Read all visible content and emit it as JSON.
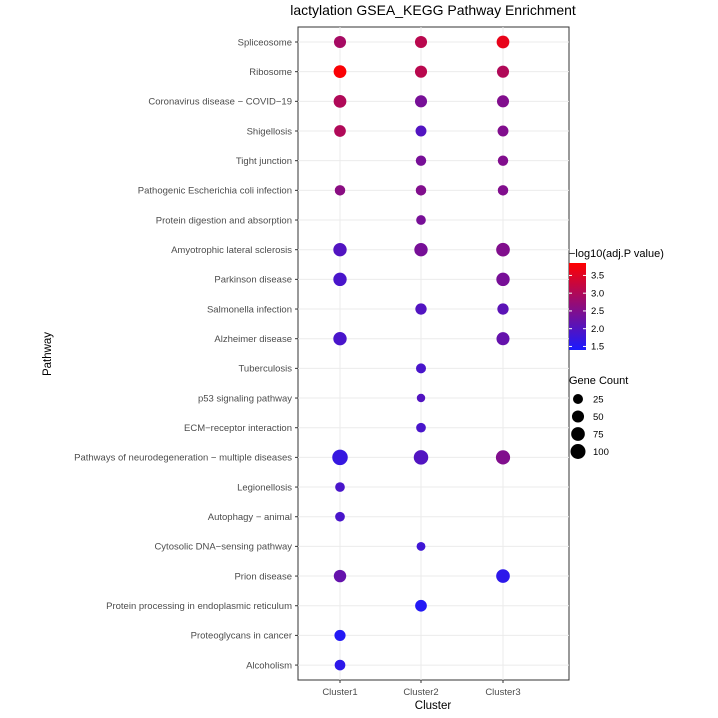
{
  "chart_data": {
    "type": "scatter",
    "title": "lactylation GSEA_KEGG Pathway Enrichment",
    "xlabel": "Cluster",
    "ylabel": "Pathway",
    "clusters": [
      "Cluster1",
      "Cluster2",
      "Cluster3"
    ],
    "pathways": [
      "Spliceosome",
      "Ribosome",
      "Coronavirus disease − COVID−19",
      "Shigellosis",
      "Tight junction",
      "Pathogenic Escherichia coli infection",
      "Protein digestion and absorption",
      "Amyotrophic lateral sclerosis",
      "Parkinson disease",
      "Salmonella infection",
      "Alzheimer disease",
      "Tuberculosis",
      "p53 signaling pathway",
      "ECM−receptor interaction",
      "Pathways of neurodegeneration − multiple diseases",
      "Legionellosis",
      "Autophagy − animal",
      "Cytosolic DNA−sensing pathway",
      "Prion disease",
      "Protein processing in endoplasmic reticulum",
      "Proteoglycans in cancer",
      "Alcoholism"
    ],
    "points": [
      {
        "pathway": "Spliceosome",
        "cluster": "Cluster1",
        "count": 50,
        "log10p": 2.9
      },
      {
        "pathway": "Spliceosome",
        "cluster": "Cluster2",
        "count": 50,
        "log10p": 3.1
      },
      {
        "pathway": "Spliceosome",
        "cluster": "Cluster3",
        "count": 60,
        "log10p": 3.6
      },
      {
        "pathway": "Ribosome",
        "cluster": "Cluster1",
        "count": 60,
        "log10p": 3.8
      },
      {
        "pathway": "Ribosome",
        "cluster": "Cluster2",
        "count": 50,
        "log10p": 3.1
      },
      {
        "pathway": "Ribosome",
        "cluster": "Cluster3",
        "count": 50,
        "log10p": 3.0
      },
      {
        "pathway": "Coronavirus disease − COVID−19",
        "cluster": "Cluster1",
        "count": 60,
        "log10p": 3.0
      },
      {
        "pathway": "Coronavirus disease − COVID−19",
        "cluster": "Cluster2",
        "count": 50,
        "log10p": 2.4
      },
      {
        "pathway": "Coronavirus disease − COVID−19",
        "cluster": "Cluster3",
        "count": 50,
        "log10p": 2.5
      },
      {
        "pathway": "Shigellosis",
        "cluster": "Cluster1",
        "count": 45,
        "log10p": 3.0
      },
      {
        "pathway": "Shigellosis",
        "cluster": "Cluster2",
        "count": 35,
        "log10p": 2.0
      },
      {
        "pathway": "Shigellosis",
        "cluster": "Cluster3",
        "count": 35,
        "log10p": 2.5
      },
      {
        "pathway": "Tight junction",
        "cluster": "Cluster2",
        "count": 30,
        "log10p": 2.4
      },
      {
        "pathway": "Tight junction",
        "cluster": "Cluster3",
        "count": 30,
        "log10p": 2.5
      },
      {
        "pathway": "Pathogenic Escherichia coli infection",
        "cluster": "Cluster1",
        "count": 30,
        "log10p": 2.6
      },
      {
        "pathway": "Pathogenic Escherichia coli infection",
        "cluster": "Cluster2",
        "count": 30,
        "log10p": 2.5
      },
      {
        "pathway": "Pathogenic Escherichia coli infection",
        "cluster": "Cluster3",
        "count": 30,
        "log10p": 2.5
      },
      {
        "pathway": "Protein digestion and absorption",
        "cluster": "Cluster2",
        "count": 22,
        "log10p": 2.4
      },
      {
        "pathway": "Amyotrophic lateral sclerosis",
        "cluster": "Cluster1",
        "count": 70,
        "log10p": 2.0
      },
      {
        "pathway": "Amyotrophic lateral sclerosis",
        "cluster": "Cluster2",
        "count": 70,
        "log10p": 2.4
      },
      {
        "pathway": "Amyotrophic lateral sclerosis",
        "cluster": "Cluster3",
        "count": 75,
        "log10p": 2.5
      },
      {
        "pathway": "Parkinson disease",
        "cluster": "Cluster1",
        "count": 70,
        "log10p": 1.9
      },
      {
        "pathway": "Parkinson disease",
        "cluster": "Cluster3",
        "count": 70,
        "log10p": 2.4
      },
      {
        "pathway": "Salmonella infection",
        "cluster": "Cluster2",
        "count": 40,
        "log10p": 2.0
      },
      {
        "pathway": "Salmonella infection",
        "cluster": "Cluster3",
        "count": 40,
        "log10p": 2.1
      },
      {
        "pathway": "Alzheimer disease",
        "cluster": "Cluster1",
        "count": 70,
        "log10p": 1.9
      },
      {
        "pathway": "Alzheimer disease",
        "cluster": "Cluster3",
        "count": 65,
        "log10p": 2.2
      },
      {
        "pathway": "Tuberculosis",
        "cluster": "Cluster2",
        "count": 25,
        "log10p": 1.9
      },
      {
        "pathway": "p53 signaling pathway",
        "cluster": "Cluster2",
        "count": 12,
        "log10p": 2.0
      },
      {
        "pathway": "ECM−receptor interaction",
        "cluster": "Cluster2",
        "count": 22,
        "log10p": 1.9
      },
      {
        "pathway": "Pathways of neurodegeneration − multiple diseases",
        "cluster": "Cluster1",
        "count": 110,
        "log10p": 1.7
      },
      {
        "pathway": "Pathways of neurodegeneration − multiple diseases",
        "cluster": "Cluster2",
        "count": 90,
        "log10p": 2.0
      },
      {
        "pathway": "Pathways of neurodegeneration − multiple diseases",
        "cluster": "Cluster3",
        "count": 85,
        "log10p": 2.5
      },
      {
        "pathway": "Legionellosis",
        "cluster": "Cluster1",
        "count": 22,
        "log10p": 1.9
      },
      {
        "pathway": "Autophagy − animal",
        "cluster": "Cluster1",
        "count": 22,
        "log10p": 1.9
      },
      {
        "pathway": "Cytosolic DNA−sensing pathway",
        "cluster": "Cluster2",
        "count": 15,
        "log10p": 1.8
      },
      {
        "pathway": "Prion disease",
        "cluster": "Cluster1",
        "count": 55,
        "log10p": 2.2
      },
      {
        "pathway": "Prion disease",
        "cluster": "Cluster3",
        "count": 75,
        "log10p": 1.6
      },
      {
        "pathway": "Protein processing in endoplasmic reticulum",
        "cluster": "Cluster2",
        "count": 45,
        "log10p": 1.5
      },
      {
        "pathway": "Proteoglycans in cancer",
        "cluster": "Cluster1",
        "count": 38,
        "log10p": 1.5
      },
      {
        "pathway": "Alcoholism",
        "cluster": "Cluster1",
        "count": 32,
        "log10p": 1.6
      }
    ],
    "color_legend": {
      "title": "−log10(adj.P value)",
      "breaks": [
        "3.5",
        "3.0",
        "2.5",
        "2.0",
        "1.5"
      ],
      "break_values": [
        3.5,
        3.0,
        2.5,
        2.0,
        1.5
      ],
      "range": [
        1.4,
        3.85
      ],
      "low_color": "#1a1aff",
      "high_color": "#ff0000"
    },
    "size_legend": {
      "title": "Gene Count",
      "breaks": [
        "25",
        "50",
        "75",
        "100"
      ],
      "break_values": [
        25,
        50,
        75,
        100
      ],
      "range": [
        10,
        110
      ]
    },
    "grid": true
  }
}
